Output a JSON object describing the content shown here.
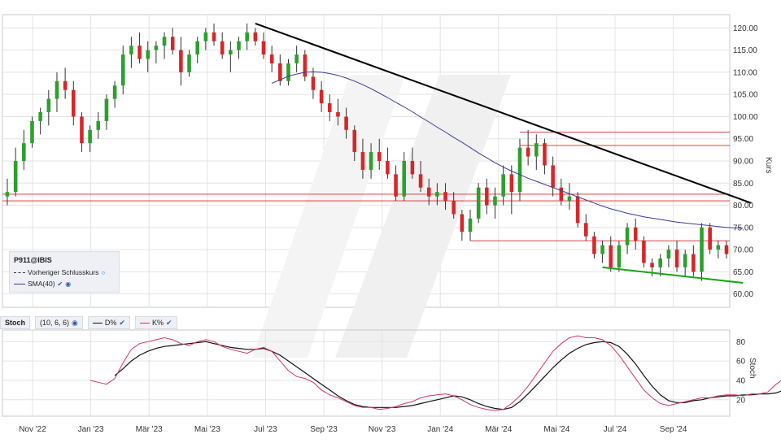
{
  "symbol": "P911@IBIS",
  "main_axis_label": "Kurs",
  "stoch_axis_label": "Stoch",
  "legend": {
    "prev_close": "Vorheriger Schlusskurs",
    "sma": "SMA(40)"
  },
  "stoch_panel": {
    "name": "Stoch",
    "params": "(10, 6, 6)",
    "d_label": "D%",
    "k_label": "K%"
  },
  "colors": {
    "up": "#2ca02c",
    "down": "#d62728",
    "sma": "#3b3b9a",
    "trend": "#000000",
    "support": "#d62728",
    "green_trend": "#17a317",
    "d_line": "#111111",
    "k_line": "#d6336c",
    "grid": "#e3e3e3"
  },
  "chart_data": [
    {
      "type": "candlestick",
      "x_tick_labels": [
        "Nov '22",
        "Jan '23",
        "Mär '23",
        "Mai '23",
        "Jul '23",
        "Sep '23",
        "Nov '23",
        "Jan '24",
        "Mär '24",
        "Mai '24",
        "Jul '24",
        "Sep '24"
      ],
      "y_ticks": [
        60,
        65,
        70,
        75,
        80,
        85,
        90,
        95,
        100,
        105,
        110,
        115,
        120
      ],
      "ylim": [
        57,
        123
      ],
      "ylabel": "Kurs",
      "candles_weekly_ohlc": [
        [
          82,
          86,
          80,
          83
        ],
        [
          83,
          93,
          82,
          90
        ],
        [
          90,
          97,
          88,
          94
        ],
        [
          94,
          100,
          93,
          99
        ],
        [
          99,
          102,
          96,
          101
        ],
        [
          101,
          106,
          98,
          104
        ],
        [
          104,
          110,
          101,
          108
        ],
        [
          108,
          111,
          104,
          106
        ],
        [
          106,
          108,
          98,
          100
        ],
        [
          100,
          101,
          92,
          94
        ],
        [
          94,
          98,
          92,
          97
        ],
        [
          97,
          101,
          95,
          99
        ],
        [
          99,
          105,
          97,
          104
        ],
        [
          104,
          108,
          102,
          107
        ],
        [
          107,
          116,
          105,
          114
        ],
        [
          114,
          118,
          111,
          116
        ],
        [
          116,
          119,
          112,
          113
        ],
        [
          113,
          117,
          110,
          115
        ],
        [
          115,
          117,
          112,
          116
        ],
        [
          116,
          119,
          113,
          118
        ],
        [
          118,
          120,
          114,
          115
        ],
        [
          115,
          118,
          107,
          110
        ],
        [
          110,
          115,
          109,
          114
        ],
        [
          114,
          118,
          112,
          117
        ],
        [
          117,
          120,
          115,
          119
        ],
        [
          119,
          121,
          116,
          117
        ],
        [
          117,
          119,
          113,
          114
        ],
        [
          114,
          117,
          110,
          115
        ],
        [
          115,
          118,
          113,
          117
        ],
        [
          117,
          121,
          115,
          119
        ],
        [
          119,
          120,
          116,
          117
        ],
        [
          117,
          119,
          113,
          114
        ],
        [
          114,
          116,
          110,
          112
        ],
        [
          112,
          114,
          107,
          108
        ],
        [
          108,
          113,
          107,
          112
        ],
        [
          112,
          116,
          110,
          114
        ],
        [
          114,
          115,
          108,
          109
        ],
        [
          109,
          111,
          104,
          106
        ],
        [
          106,
          108,
          101,
          103
        ],
        [
          103,
          105,
          99,
          101
        ],
        [
          101,
          104,
          98,
          100
        ],
        [
          100,
          102,
          95,
          97
        ],
        [
          97,
          98,
          90,
          92
        ],
        [
          92,
          95,
          86,
          88
        ],
        [
          88,
          94,
          86,
          92
        ],
        [
          92,
          95,
          88,
          90
        ],
        [
          90,
          93,
          86,
          87
        ],
        [
          87,
          89,
          81,
          82
        ],
        [
          82,
          92,
          81,
          90
        ],
        [
          90,
          93,
          86,
          87
        ],
        [
          87,
          90,
          83,
          84
        ],
        [
          84,
          86,
          80,
          82
        ],
        [
          82,
          85,
          80,
          83
        ],
        [
          83,
          85,
          79,
          81
        ],
        [
          81,
          83,
          77,
          78
        ],
        [
          78,
          79,
          72,
          74
        ],
        [
          74,
          79,
          72,
          77
        ],
        [
          77,
          85,
          76,
          84
        ],
        [
          84,
          86,
          78,
          80
        ],
        [
          80,
          84,
          77,
          82
        ],
        [
          82,
          89,
          80,
          87
        ],
        [
          87,
          89,
          78,
          83
        ],
        [
          83,
          95,
          81,
          93
        ],
        [
          93,
          97,
          89,
          91
        ],
        [
          91,
          96,
          88,
          94
        ],
        [
          94,
          95,
          87,
          89
        ],
        [
          89,
          91,
          82,
          84
        ],
        [
          84,
          86,
          80,
          81
        ],
        [
          81,
          85,
          79,
          82
        ],
        [
          82,
          83,
          75,
          76
        ],
        [
          76,
          78,
          72,
          73
        ],
        [
          73,
          74,
          68,
          69
        ],
        [
          69,
          72,
          67,
          71
        ],
        [
          71,
          73,
          65,
          66
        ],
        [
          66,
          72,
          65,
          71
        ],
        [
          71,
          76,
          69,
          75
        ],
        [
          75,
          77,
          70,
          72
        ],
        [
          72,
          73,
          66,
          67
        ],
        [
          67,
          68,
          64,
          66
        ],
        [
          66,
          69,
          64,
          68
        ],
        [
          68,
          71,
          66,
          70
        ],
        [
          70,
          72,
          65,
          66
        ],
        [
          66,
          70,
          64,
          69
        ],
        [
          69,
          71,
          64,
          65
        ],
        [
          65,
          76,
          63,
          75
        ],
        [
          75,
          76,
          69,
          70
        ],
        [
          70,
          72,
          68,
          71
        ],
        [
          71,
          72,
          68,
          69
        ]
      ],
      "sma40": [
        null,
        null,
        null,
        null,
        null,
        null,
        null,
        null,
        null,
        null,
        null,
        null,
        null,
        null,
        null,
        null,
        null,
        null,
        null,
        null,
        null,
        null,
        null,
        null,
        null,
        null,
        null,
        null,
        null,
        null,
        null,
        null,
        107.5,
        108.3,
        109.1,
        109.6,
        110,
        110.1,
        110,
        109.7,
        109.3,
        108.7,
        108,
        107.2,
        106.3,
        105.3,
        104.3,
        103.2,
        102.2,
        101.1,
        99.9,
        98.8,
        97.6,
        96.5,
        95.3,
        94.2,
        93,
        91.8,
        90.7,
        89.6,
        88.6,
        87.7,
        86.9,
        86.1,
        85.4,
        84.7,
        84,
        83.3,
        82.6,
        81.9,
        81.2,
        80.5,
        79.8,
        79.2,
        78.7,
        78.2,
        77.8,
        77.4,
        77.1,
        76.8,
        76.5,
        76.2,
        76,
        75.8,
        75.6,
        75.4,
        75.2,
        75,
        74.9,
        74.8
      ],
      "horizontal_lines": [
        96.5,
        93.5,
        82.5,
        81,
        72
      ],
      "trendline_down": {
        "from": [
          30,
          121
        ],
        "to": [
          90,
          80.5
        ]
      },
      "trendline_support": {
        "from": [
          72,
          66
        ],
        "to": [
          89,
          62.5
        ]
      }
    },
    {
      "type": "line",
      "name": "Stoch",
      "y_ticks": [
        20,
        40,
        60,
        80
      ],
      "ylim": [
        3,
        92
      ],
      "ylabel": "Stoch",
      "series": [
        {
          "name": "D%",
          "values": [
            null,
            null,
            null,
            null,
            null,
            null,
            null,
            null,
            null,
            null,
            null,
            null,
            null,
            45,
            52,
            60,
            66,
            70,
            73,
            75,
            76,
            77,
            78,
            79,
            80,
            78,
            76,
            74,
            73,
            72,
            72,
            73,
            70,
            66,
            60,
            54,
            48,
            42,
            36,
            30,
            24,
            19,
            15,
            13,
            12,
            12,
            12,
            12,
            13,
            14,
            16,
            18,
            20,
            22,
            24,
            23,
            20,
            16,
            13,
            11,
            10,
            12,
            18,
            26,
            35,
            44,
            53,
            61,
            68,
            73,
            77,
            79,
            80,
            79,
            75,
            67,
            57,
            45,
            34,
            25,
            19,
            17,
            17,
            19,
            20,
            22,
            23,
            24,
            24,
            25,
            25,
            26,
            26,
            27,
            30,
            35,
            40
          ]
        },
        {
          "name": "K%",
          "values": [
            null,
            null,
            null,
            null,
            null,
            null,
            null,
            null,
            null,
            null,
            40,
            38,
            36,
            42,
            58,
            72,
            78,
            80,
            82,
            84,
            82,
            78,
            76,
            80,
            82,
            80,
            75,
            72,
            70,
            68,
            72,
            74,
            70,
            60,
            50,
            44,
            42,
            38,
            30,
            25,
            22,
            18,
            14,
            12,
            12,
            10,
            11,
            13,
            16,
            18,
            22,
            24,
            25,
            26,
            24,
            20,
            15,
            12,
            10,
            9,
            10,
            16,
            24,
            34,
            46,
            58,
            70,
            78,
            84,
            86,
            84,
            84,
            82,
            76,
            66,
            54,
            42,
            30,
            22,
            16,
            14,
            16,
            18,
            20,
            22,
            22,
            24,
            25,
            25,
            24,
            26,
            26,
            28,
            36,
            42,
            44,
            50
          ]
        }
      ]
    }
  ]
}
